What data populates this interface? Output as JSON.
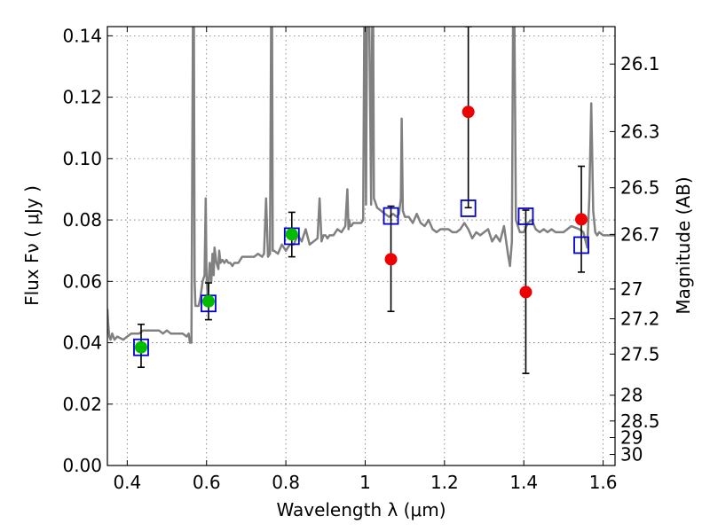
{
  "chart_data": {
    "type": "scatter",
    "title": "",
    "xlabel": "Wavelength  λ (μm)",
    "ylabel": "Flux  Fν  ( μJy )",
    "ylabel_right": "Magnitude (AB)",
    "xlim": [
      0.35,
      1.63
    ],
    "ylim": [
      0.0,
      0.143
    ],
    "grid": true,
    "x_ticks": [
      0.4,
      0.6,
      0.8,
      1.0,
      1.2,
      1.4,
      1.6
    ],
    "x_tick_labels": [
      "0.4",
      "0.6",
      "0.8",
      "1",
      "1.2",
      "1.4",
      "1.6"
    ],
    "y_ticks": [
      0.0,
      0.02,
      0.04,
      0.06,
      0.08,
      0.1,
      0.12,
      0.14
    ],
    "y_tick_labels": [
      "0.00",
      "0.02",
      "0.04",
      "0.06",
      "0.08",
      "0.10",
      "0.12",
      "0.14"
    ],
    "right_ticks": [
      {
        "label": "26.1",
        "flux": 0.1308
      },
      {
        "label": "26.3",
        "flux": 0.1088
      },
      {
        "label": "26.5",
        "flux": 0.0905
      },
      {
        "label": "26.7",
        "flux": 0.0753
      },
      {
        "label": "27",
        "flux": 0.0575
      },
      {
        "label": "27.2",
        "flux": 0.0478
      },
      {
        "label": "27.5",
        "flux": 0.0363
      },
      {
        "label": "28",
        "flux": 0.0229
      },
      {
        "label": "28.5",
        "flux": 0.0145
      },
      {
        "label": "29",
        "flux": 0.0091
      },
      {
        "label": "30",
        "flux": 0.0036
      }
    ],
    "series": [
      {
        "type": "line",
        "color": "#808080",
        "x": [
          0.35,
          0.352,
          0.355,
          0.358,
          0.362,
          0.368,
          0.375,
          0.39,
          0.4,
          0.41,
          0.42,
          0.43,
          0.44,
          0.45,
          0.46,
          0.47,
          0.48,
          0.49,
          0.5,
          0.51,
          0.52,
          0.53,
          0.54,
          0.55,
          0.555,
          0.558,
          0.562,
          0.566,
          0.568,
          0.57,
          0.572,
          0.575,
          0.58,
          0.585,
          0.59,
          0.595,
          0.598,
          0.6,
          0.603,
          0.608,
          0.612,
          0.615,
          0.618,
          0.62,
          0.625,
          0.63,
          0.632,
          0.635,
          0.64,
          0.645,
          0.65,
          0.655,
          0.66,
          0.665,
          0.67,
          0.68,
          0.69,
          0.7,
          0.71,
          0.72,
          0.73,
          0.74,
          0.745,
          0.75,
          0.755,
          0.76,
          0.763,
          0.765,
          0.767,
          0.77,
          0.78,
          0.79,
          0.8,
          0.81,
          0.82,
          0.83,
          0.84,
          0.85,
          0.86,
          0.87,
          0.88,
          0.885,
          0.89,
          0.895,
          0.9,
          0.905,
          0.91,
          0.92,
          0.93,
          0.94,
          0.95,
          0.955,
          0.958,
          0.96,
          0.962,
          0.965,
          0.97,
          0.98,
          0.99,
          0.995,
          0.998,
          1.0,
          1.002,
          1.005,
          1.01,
          1.015,
          1.018,
          1.02,
          1.022,
          1.025,
          1.03,
          1.04,
          1.05,
          1.06,
          1.07,
          1.08,
          1.085,
          1.09,
          1.092,
          1.095,
          1.1,
          1.11,
          1.12,
          1.13,
          1.14,
          1.15,
          1.16,
          1.17,
          1.18,
          1.19,
          1.2,
          1.21,
          1.22,
          1.23,
          1.24,
          1.25,
          1.26,
          1.27,
          1.28,
          1.29,
          1.3,
          1.31,
          1.32,
          1.33,
          1.34,
          1.35,
          1.36,
          1.365,
          1.37,
          1.373,
          1.376,
          1.38,
          1.39,
          1.4,
          1.41,
          1.42,
          1.43,
          1.44,
          1.45,
          1.46,
          1.47,
          1.48,
          1.5,
          1.52,
          1.54,
          1.55,
          1.56,
          1.565,
          1.57,
          1.575,
          1.58,
          1.585,
          1.59,
          1.6,
          1.61,
          1.62,
          1.63
        ],
        "y": [
          0.051,
          0.046,
          0.042,
          0.041,
          0.043,
          0.041,
          0.042,
          0.041,
          0.042,
          0.043,
          0.043,
          0.043,
          0.044,
          0.044,
          0.044,
          0.044,
          0.044,
          0.043,
          0.044,
          0.043,
          0.043,
          0.043,
          0.043,
          0.042,
          0.043,
          0.04,
          0.04,
          0.15,
          0.15,
          0.06,
          0.052,
          0.052,
          0.052,
          0.055,
          0.06,
          0.062,
          0.087,
          0.062,
          0.055,
          0.066,
          0.06,
          0.069,
          0.062,
          0.071,
          0.066,
          0.064,
          0.07,
          0.066,
          0.067,
          0.066,
          0.067,
          0.066,
          0.066,
          0.065,
          0.066,
          0.066,
          0.068,
          0.068,
          0.068,
          0.068,
          0.069,
          0.068,
          0.069,
          0.087,
          0.068,
          0.069,
          0.15,
          0.15,
          0.07,
          0.07,
          0.069,
          0.072,
          0.07,
          0.072,
          0.072,
          0.075,
          0.073,
          0.077,
          0.072,
          0.073,
          0.074,
          0.087,
          0.073,
          0.075,
          0.075,
          0.074,
          0.075,
          0.075,
          0.077,
          0.076,
          0.078,
          0.09,
          0.077,
          0.08,
          0.078,
          0.078,
          0.079,
          0.079,
          0.079,
          0.08,
          0.15,
          0.15,
          0.085,
          0.15,
          0.15,
          0.085,
          0.15,
          0.15,
          0.087,
          0.086,
          0.084,
          0.083,
          0.082,
          0.081,
          0.082,
          0.081,
          0.082,
          0.087,
          0.113,
          0.083,
          0.081,
          0.081,
          0.079,
          0.082,
          0.079,
          0.078,
          0.08,
          0.077,
          0.076,
          0.077,
          0.077,
          0.077,
          0.076,
          0.076,
          0.077,
          0.079,
          0.077,
          0.074,
          0.076,
          0.075,
          0.076,
          0.077,
          0.073,
          0.075,
          0.073,
          0.078,
          0.069,
          0.065,
          0.073,
          0.15,
          0.15,
          0.08,
          0.076,
          0.076,
          0.079,
          0.08,
          0.077,
          0.076,
          0.077,
          0.076,
          0.077,
          0.076,
          0.076,
          0.078,
          0.077,
          0.076,
          0.071,
          0.087,
          0.118,
          0.083,
          0.076,
          0.075,
          0.076,
          0.075,
          0.075,
          0.075,
          0.075
        ]
      },
      {
        "type": "scatter",
        "marker": "circle",
        "color": "#00bb00",
        "x": [
          0.435,
          0.605,
          0.815
        ],
        "y": [
          0.0385,
          0.0535,
          0.0753
        ],
        "yerr_low": [
          0.032,
          0.0475,
          0.068
        ],
        "yerr_high": [
          0.046,
          0.0595,
          0.0825
        ]
      },
      {
        "type": "scatter",
        "marker": "circle",
        "color": "#ee0000",
        "x": [
          1.065,
          1.26,
          1.405,
          1.545
        ],
        "y": [
          0.0672,
          0.1152,
          0.0565,
          0.0802
        ],
        "yerr_low": [
          0.0502,
          0.084,
          0.03,
          0.063
        ],
        "yerr_high": [
          0.0845,
          0.143,
          0.0832,
          0.0975
        ]
      },
      {
        "type": "scatter",
        "marker": "open-square",
        "color": "#0000cc",
        "x": [
          0.435,
          0.605,
          0.815,
          1.065,
          1.26,
          1.405,
          1.545
        ],
        "y": [
          0.0385,
          0.0528,
          0.0747,
          0.0813,
          0.0838,
          0.0812,
          0.0718
        ]
      }
    ]
  }
}
